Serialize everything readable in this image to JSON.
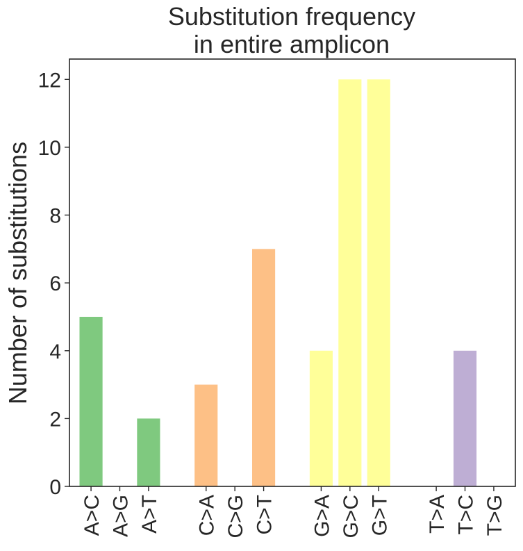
{
  "chart_data": {
    "type": "bar",
    "title_lines": [
      "Substitution frequency",
      "in entire amplicon"
    ],
    "xlabel": "",
    "ylabel": "Number of substitutions",
    "ylim": [
      0,
      12.6
    ],
    "yticks": [
      0,
      2,
      4,
      6,
      8,
      10,
      12
    ],
    "grid": false,
    "categories": [
      "A>C",
      "A>G",
      "A>T",
      "C>A",
      "C>G",
      "C>T",
      "G>A",
      "G>C",
      "G>T",
      "T>A",
      "T>C",
      "T>G"
    ],
    "positions": [
      0,
      1,
      2,
      4,
      5,
      6,
      8,
      9,
      10,
      12,
      13,
      14
    ],
    "values": [
      5,
      0,
      2,
      3,
      0,
      7,
      4,
      12,
      12,
      0,
      4,
      0
    ],
    "group_colors": {
      "A": "#7fc97f",
      "C": "#fdc086",
      "G": "#ffff99",
      "T": "#beaed4"
    }
  }
}
